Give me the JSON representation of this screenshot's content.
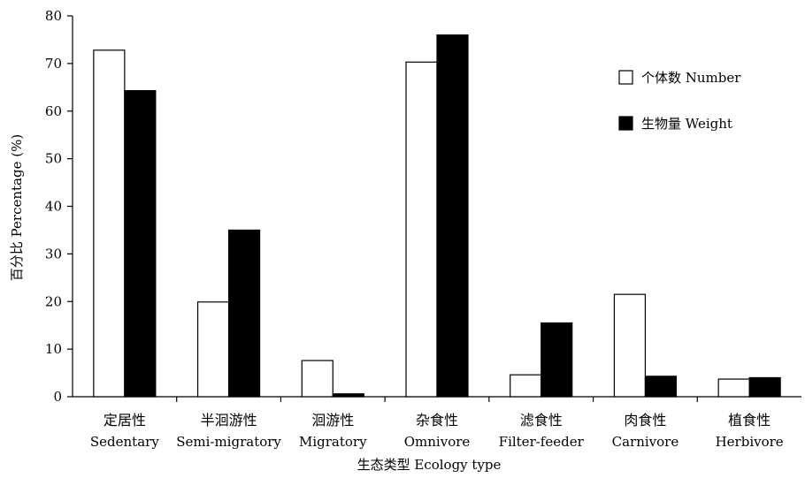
{
  "chart_data": {
    "type": "bar",
    "title": "",
    "xlabel": "生态类型 Ecology type",
    "ylabel": "百分比 Percentage (%)",
    "ylim": [
      0,
      80
    ],
    "yticks": [
      0,
      10,
      20,
      30,
      40,
      50,
      60,
      70,
      80
    ],
    "grid": false,
    "legend_position": "top-right",
    "categories": [
      {
        "zh": "定居性",
        "en": "Sedentary"
      },
      {
        "zh": "半洄游性",
        "en": "Semi-migratory"
      },
      {
        "zh": "洄游性",
        "en": "Migratory"
      },
      {
        "zh": "杂食性",
        "en": "Omnivore"
      },
      {
        "zh": "滤食性",
        "en": "Filter-feeder"
      },
      {
        "zh": "肉食性",
        "en": "Carnivore"
      },
      {
        "zh": "植食性",
        "en": "Herbivore"
      }
    ],
    "series": [
      {
        "name": "个体数 Number",
        "fill": "#ffffff",
        "values": [
          72.8,
          19.9,
          7.6,
          70.3,
          4.6,
          21.5,
          3.7
        ]
      },
      {
        "name": "生物量 Weight",
        "fill": "#000000",
        "values": [
          64.3,
          35.0,
          0.6,
          76.0,
          15.5,
          4.3,
          4.0
        ]
      }
    ]
  }
}
